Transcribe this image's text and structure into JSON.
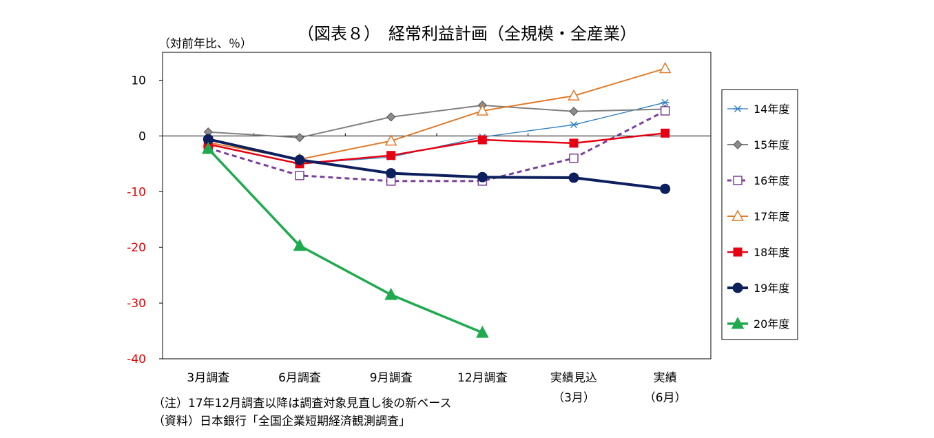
{
  "chart_data": {
    "type": "line",
    "title": "（図表８）　経常利益計画（全規模・全産業）",
    "ylabel": "（対前年比、％）",
    "ylim": [
      -40,
      15
    ],
    "yticks": [
      {
        "value": 10,
        "label": "10",
        "color": "#000000"
      },
      {
        "value": 0,
        "label": "0",
        "color": "#000000"
      },
      {
        "value": -10,
        "label": "-10",
        "color": "#e00000"
      },
      {
        "value": -20,
        "label": "-20",
        "color": "#e00000"
      },
      {
        "value": -30,
        "label": "-30",
        "color": "#e00000"
      },
      {
        "value": -40,
        "label": "-40",
        "color": "#e00000"
      }
    ],
    "categories": [
      {
        "line1": "3月調査",
        "line2": ""
      },
      {
        "line1": "6月調査",
        "line2": ""
      },
      {
        "line1": "9月調査",
        "line2": ""
      },
      {
        "line1": "12月調査",
        "line2": ""
      },
      {
        "line1": "実績見込",
        "line2": "（3月）"
      },
      {
        "line1": "実績",
        "line2": "（6月）"
      }
    ],
    "series": [
      {
        "name": "14年度",
        "color": "#2f7fbf",
        "marker": "star",
        "dash": false,
        "width": 1.3,
        "values": [
          -1.5,
          -5.0,
          -3.8,
          -0.2,
          2.0,
          6.0
        ]
      },
      {
        "name": "15年度",
        "color": "#808080",
        "marker": "diamond",
        "dash": false,
        "width": 2,
        "values": [
          0.7,
          -0.3,
          3.4,
          5.5,
          4.4,
          4.8
        ]
      },
      {
        "name": "16年度",
        "color": "#7a3f98",
        "marker": "square-open",
        "dash": true,
        "width": 3,
        "values": [
          -2.2,
          -7.1,
          -8.1,
          -8.1,
          -4.0,
          4.5
        ]
      },
      {
        "name": "17年度",
        "color": "#e07b2a",
        "marker": "triangle-open",
        "dash": false,
        "width": 2,
        "values": [
          -1.2,
          -4.2,
          -0.9,
          4.5,
          7.2,
          12.1
        ]
      },
      {
        "name": "18年度",
        "color": "#e60012",
        "marker": "square",
        "dash": false,
        "width": 2.5,
        "values": [
          -1.5,
          -5.0,
          -3.5,
          -0.7,
          -1.3,
          0.5
        ]
      },
      {
        "name": "19年度",
        "color": "#0d1f5c",
        "marker": "circle",
        "dash": false,
        "width": 4,
        "values": [
          -0.6,
          -4.3,
          -6.7,
          -7.4,
          -7.5,
          -9.5
        ]
      },
      {
        "name": "20年度",
        "color": "#1faa4e",
        "marker": "triangle",
        "dash": false,
        "width": 3.5,
        "values": [
          -2.3,
          -19.7,
          -28.5,
          -35.3,
          null,
          null
        ]
      }
    ],
    "notes": [
      "（注）17年12月調査以降は調査対象見直し後の新ベース",
      "（資料）日本銀行「全国企業短期経済観測調査」"
    ]
  }
}
